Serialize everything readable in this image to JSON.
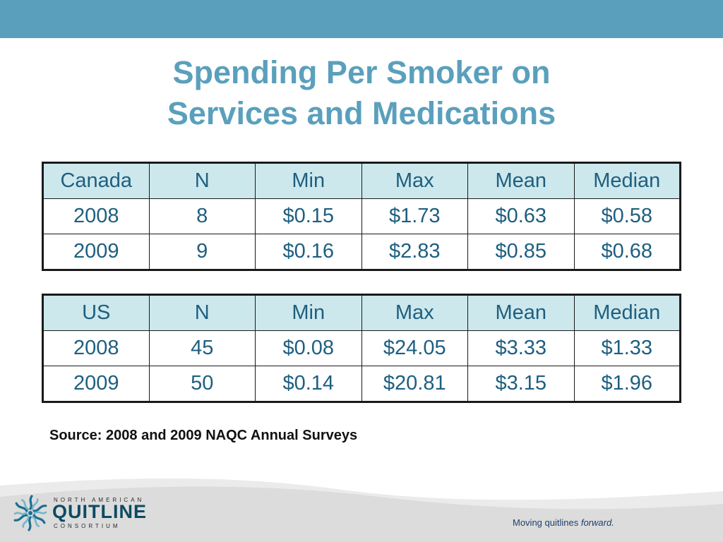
{
  "colors": {
    "accent": "#5aa0bc",
    "table_header_bg": "#cde8ec",
    "table_text": "#1e5f80",
    "logo_dark": "#0e4a63",
    "footer_gray": "#dcdcdc"
  },
  "title": {
    "line1": "Spending Per Smoker on",
    "line2": "Services and Medications"
  },
  "tables": [
    {
      "headers": [
        "Canada",
        "N",
        "Min",
        "Max",
        "Mean",
        "Median"
      ],
      "rows": [
        [
          "2008",
          "8",
          "$0.15",
          "$1.73",
          "$0.63",
          "$0.58"
        ],
        [
          "2009",
          "9",
          "$0.16",
          "$2.83",
          "$0.85",
          "$0.68"
        ]
      ]
    },
    {
      "headers": [
        "US",
        "N",
        "Min",
        "Max",
        "Mean",
        "Median"
      ],
      "rows": [
        [
          "2008",
          "45",
          "$0.08",
          "$24.05",
          "$3.33",
          "$1.33"
        ],
        [
          "2009",
          "50",
          "$0.14",
          "$20.81",
          "$3.15",
          "$1.96"
        ]
      ]
    }
  ],
  "source": "Source: 2008 and 2009 NAQC Annual Surveys",
  "logo": {
    "top_text": "NORTH AMERICAN",
    "main_text": "QUITLINE",
    "bottom_text": "CONSORTIUM",
    "icon": "snowflake-burst-icon"
  },
  "tagline": {
    "text": "Moving quitlines",
    "emphasis": "forward."
  }
}
